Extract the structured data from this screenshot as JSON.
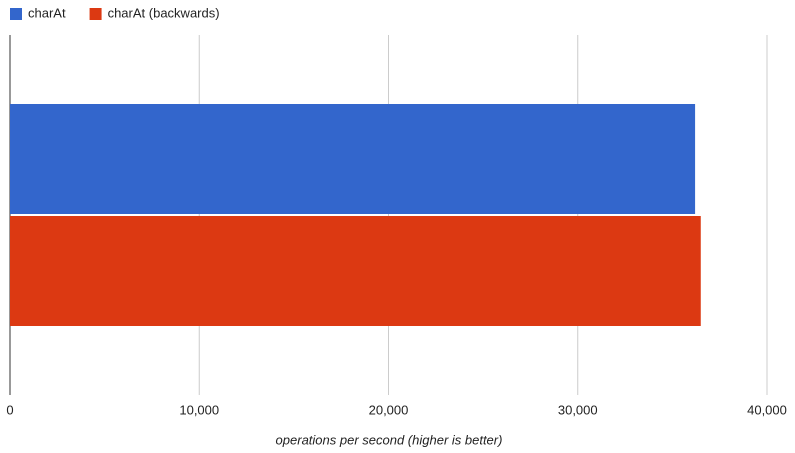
{
  "chart_data": {
    "type": "bar",
    "orientation": "horizontal",
    "categories": [
      null
    ],
    "series": [
      {
        "name": "charAt",
        "color": "#3366cc",
        "values": [
          36200
        ]
      },
      {
        "name": "charAt (backwards)",
        "color": "#dc3912",
        "values": [
          36500
        ]
      }
    ],
    "xlabel": "operations per second (higher is better)",
    "xlim": [
      0,
      40000
    ],
    "xticks": [
      0,
      {
        "value": 10000,
        "label": "10,000"
      },
      {
        "value": 20000,
        "label": "20,000"
      },
      {
        "value": 30000,
        "label": "30,000"
      },
      {
        "value": 40000,
        "label": "40,000"
      }
    ],
    "grid": true,
    "legend": "top-left"
  }
}
